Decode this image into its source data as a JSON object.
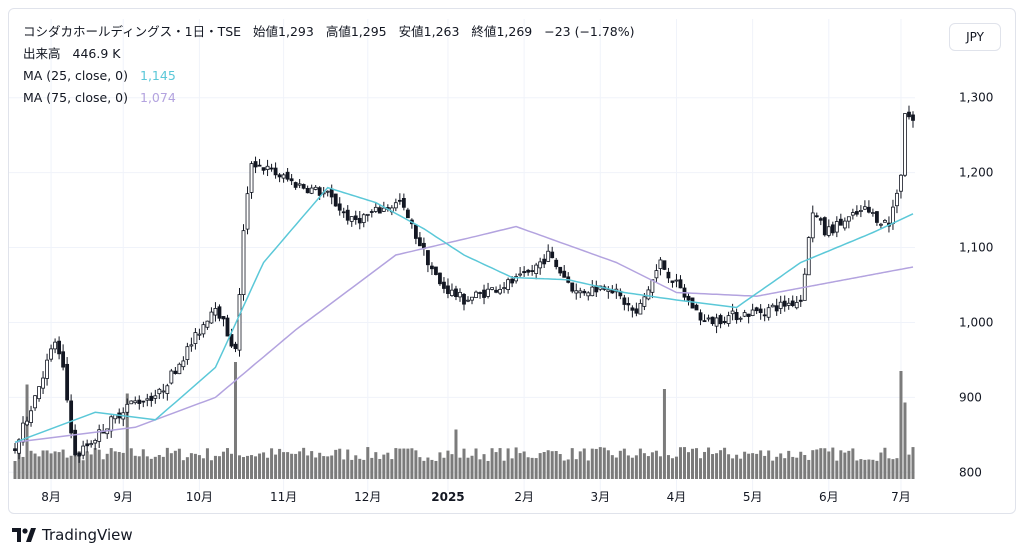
{
  "header": {
    "title": "コシダカホールディングス・1日・TSE",
    "open_label": "始値",
    "open_value": "1,293",
    "high_label": "高値",
    "high_value": "1,295",
    "low_label": "安値",
    "low_value": "1,263",
    "close_label": "終値",
    "close_value": "1,269",
    "change": "−23 (−1.78%)"
  },
  "volume_legend": {
    "label": "出来高",
    "value": "446.9 K"
  },
  "ma25": {
    "label": "MA (25, close, 0)",
    "value": "1,145",
    "color": "#5bc8d8"
  },
  "ma75": {
    "label": "MA (75, close, 0)",
    "value": "1,074",
    "color": "#b3a3df"
  },
  "currency_button": "JPY",
  "branding": {
    "name": "TradingView",
    "logo_icon": "tradingview-logo-icon"
  },
  "colors": {
    "up": "#ffffff",
    "down": "#131722",
    "volume": "#7b7b7b",
    "grid": "#f0f3fa"
  },
  "chart_data": {
    "type": "candlestick",
    "y_ticks": [
      "1,300",
      "1,200",
      "1,100",
      "1,000",
      "900",
      "800"
    ],
    "y_tick_values": [
      1300,
      1200,
      1100,
      1000,
      900,
      800
    ],
    "ylim": [
      775,
      1365
    ],
    "x_ticks": [
      "8月",
      "9月",
      "10月",
      "11月",
      "12月",
      "2025",
      "2月",
      "3月",
      "4月",
      "5月",
      "6月",
      "7月"
    ],
    "grid": true,
    "series": [
      {
        "name": "price",
        "anchors": [
          [
            0,
            830
          ],
          [
            10,
            975
          ],
          [
            12,
            935
          ],
          [
            15,
            820
          ],
          [
            28,
            890
          ],
          [
            36,
            905
          ],
          [
            45,
            980
          ],
          [
            50,
            1025
          ],
          [
            55,
            960
          ],
          [
            57,
            1120
          ],
          [
            59,
            1215
          ],
          [
            70,
            1185
          ],
          [
            78,
            1170
          ],
          [
            84,
            1135
          ],
          [
            96,
            1160
          ],
          [
            106,
            1050
          ],
          [
            112,
            1030
          ],
          [
            127,
            1060
          ],
          [
            133,
            1090
          ],
          [
            140,
            1040
          ],
          [
            148,
            1050
          ],
          [
            155,
            1010
          ],
          [
            161,
            1080
          ],
          [
            165,
            1050
          ],
          [
            172,
            1000
          ],
          [
            180,
            1010
          ],
          [
            186,
            1015
          ],
          [
            196,
            1030
          ],
          [
            199,
            1150
          ],
          [
            202,
            1120
          ],
          [
            212,
            1150
          ],
          [
            218,
            1130
          ],
          [
            221,
            1200
          ],
          [
            222,
            1280
          ],
          [
            224,
            1269
          ]
        ]
      },
      {
        "name": "MA (25, close, 0)",
        "anchors": [
          [
            0,
            840
          ],
          [
            20,
            880
          ],
          [
            35,
            870
          ],
          [
            50,
            940
          ],
          [
            62,
            1080
          ],
          [
            78,
            1180
          ],
          [
            90,
            1160
          ],
          [
            102,
            1125
          ],
          [
            112,
            1090
          ],
          [
            124,
            1060
          ],
          [
            138,
            1057
          ],
          [
            152,
            1040
          ],
          [
            165,
            1030
          ],
          [
            180,
            1020
          ],
          [
            196,
            1080
          ],
          [
            214,
            1120
          ],
          [
            224,
            1145
          ]
        ]
      },
      {
        "name": "MA (75, close, 0)",
        "anchors": [
          [
            0,
            840
          ],
          [
            30,
            860
          ],
          [
            50,
            900
          ],
          [
            70,
            990
          ],
          [
            95,
            1090
          ],
          [
            115,
            1115
          ],
          [
            125,
            1128
          ],
          [
            150,
            1080
          ],
          [
            165,
            1040
          ],
          [
            185,
            1035
          ],
          [
            205,
            1055
          ],
          [
            224,
            1074
          ]
        ]
      },
      {
        "name": "出来高",
        "spikes": [
          [
            3,
            1.05
          ],
          [
            28,
            0.95
          ],
          [
            55,
            1.3
          ],
          [
            110,
            0.55
          ],
          [
            132,
            0.3
          ],
          [
            162,
            1.0
          ],
          [
            173,
            0.35
          ],
          [
            221,
            1.2
          ],
          [
            222,
            0.85
          ]
        ]
      }
    ],
    "last_volume": 446.9
  }
}
